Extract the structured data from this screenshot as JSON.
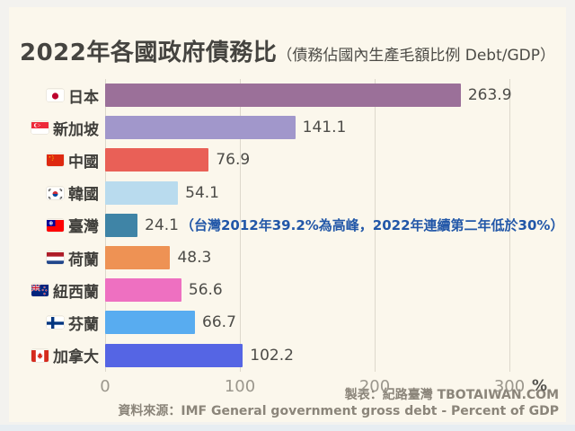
{
  "title": {
    "main": "2022年各國政府債務比",
    "sub": "（債務佔國內生產毛額比例 Debt/GDP）"
  },
  "chart_data": {
    "type": "bar",
    "orientation": "horizontal",
    "title": "2022年各國政府債務比（債務佔國內生產毛額比例 Debt/GDP）",
    "unit": "%",
    "xlim": [
      0,
      300
    ],
    "x_ticks": [
      0,
      100,
      200,
      300
    ],
    "x_unit_label": "%",
    "grid": true,
    "categories": [
      "日本",
      "新加坡",
      "中國",
      "韓國",
      "臺灣",
      "荷蘭",
      "紐西蘭",
      "芬蘭",
      "加拿大"
    ],
    "values": [
      263.9,
      141.1,
      76.9,
      54.1,
      24.1,
      48.3,
      56.6,
      66.7,
      102.2
    ],
    "rows": [
      {
        "label": "日本",
        "flag": "japan-flag-icon",
        "value": 263.9,
        "display": "263.9",
        "color": "#9b7099"
      },
      {
        "label": "新加坡",
        "flag": "singapore-flag-icon",
        "value": 141.1,
        "display": "141.1",
        "color": "#a197cb"
      },
      {
        "label": "中國",
        "flag": "china-flag-icon",
        "value": 76.9,
        "display": "76.9",
        "color": "#e96057"
      },
      {
        "label": "韓國",
        "flag": "korea-flag-icon",
        "value": 54.1,
        "display": "54.1",
        "color": "#b9dbee"
      },
      {
        "label": "臺灣",
        "flag": "taiwan-flag-icon",
        "value": 24.1,
        "display": "24.1",
        "color": "#3f84a6",
        "annotation": "（台灣2012年39.2%為高峰，2022年連續第二年低於30%）"
      },
      {
        "label": "荷蘭",
        "flag": "netherlands-flag-icon",
        "value": 48.3,
        "display": "48.3",
        "color": "#ee9254"
      },
      {
        "label": "紐西蘭",
        "flag": "new-zealand-flag-icon",
        "value": 56.6,
        "display": "56.6",
        "color": "#ee70c1"
      },
      {
        "label": "芬蘭",
        "flag": "finland-flag-icon",
        "value": 66.7,
        "display": "66.7",
        "color": "#58acf0"
      },
      {
        "label": "加拿大",
        "flag": "canada-flag-icon",
        "value": 102.2,
        "display": "102.2",
        "color": "#5565e4"
      }
    ],
    "annotation_color": "#2257a8"
  },
  "footer": {
    "credit": "製表：紀路臺灣 TBOTAIWAN.COM",
    "source": "資料來源：IMF General government gross debt - Percent of GDP"
  },
  "colors": {
    "background": "#f3f2ef",
    "card": "#fbf7ec",
    "title": "#454440",
    "value_label": "#4d4c48",
    "tick_label": "#9b978d",
    "gridline": "#ddd8cc",
    "footer": "#8b857a",
    "bottom_strip": "#e7edf2"
  }
}
